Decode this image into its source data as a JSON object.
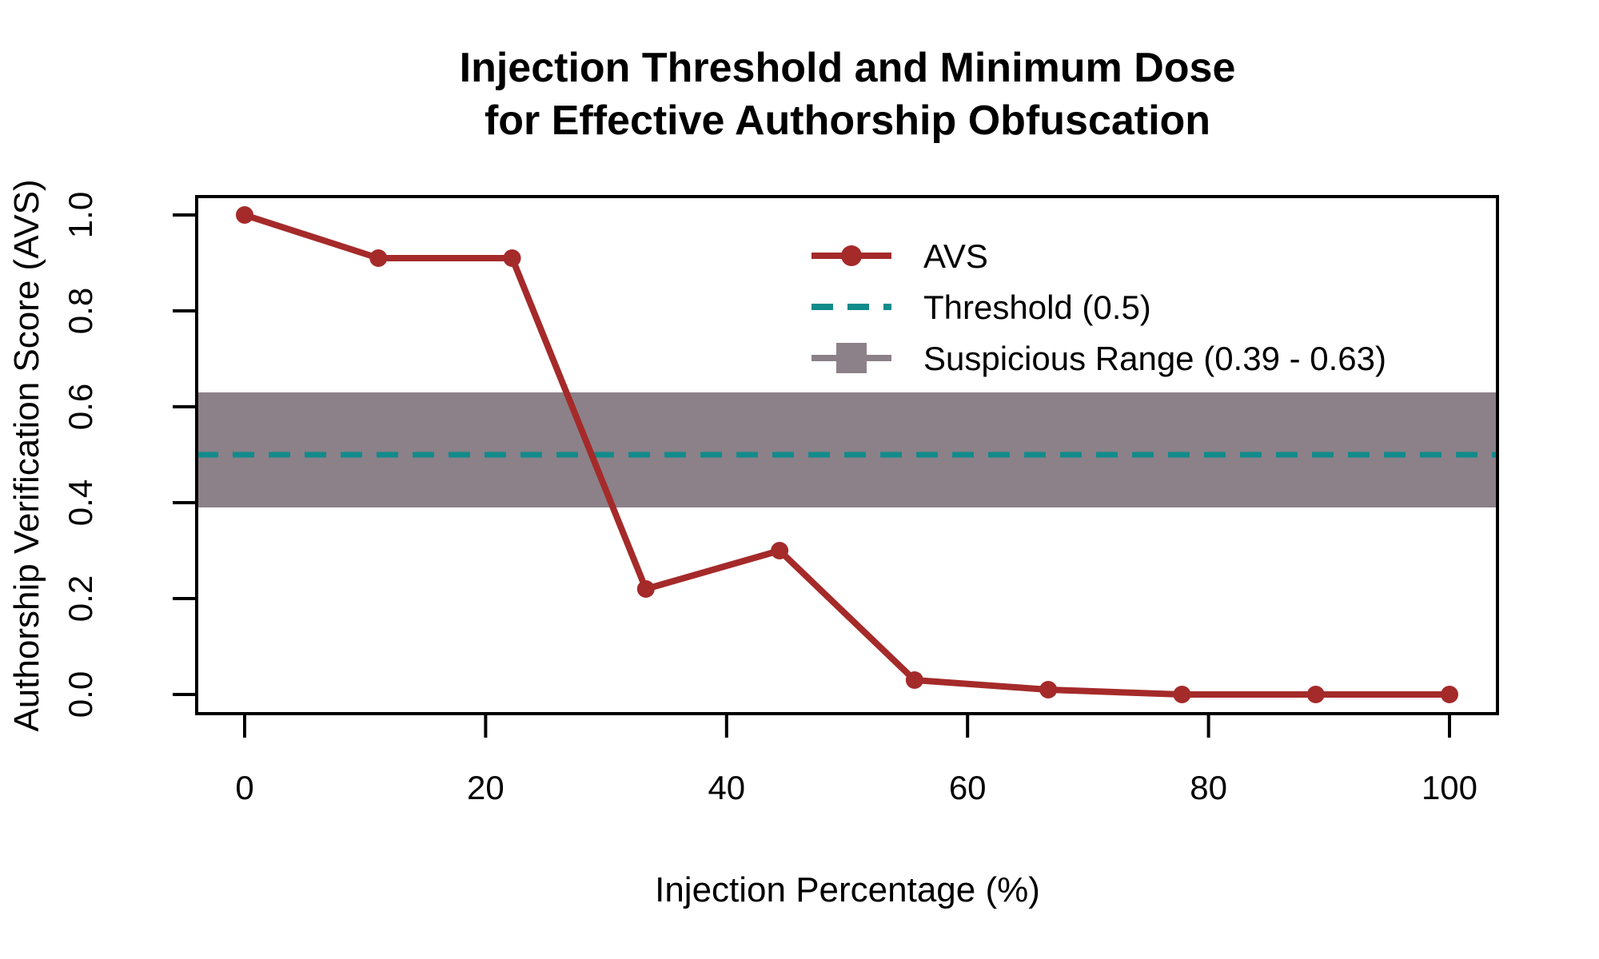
{
  "chart_data": {
    "type": "line",
    "title_line1": "Injection Threshold and Minimum Dose",
    "title_line2": "for Effective Authorship Obfuscation",
    "xlabel": "Injection Percentage (%)",
    "ylabel": "Authorship Verification Score (AVS)",
    "x": [
      0,
      11.1,
      22.2,
      33.3,
      44.4,
      55.6,
      66.7,
      77.8,
      88.9,
      100
    ],
    "series": [
      {
        "name": "AVS",
        "values": [
          1.0,
          0.91,
          0.91,
          0.22,
          0.3,
          0.03,
          0.01,
          0.0,
          0.0,
          0.0
        ]
      }
    ],
    "threshold_value": 0.5,
    "suspicious_range": [
      0.39,
      0.63
    ],
    "xlim": [
      0,
      100
    ],
    "ylim": [
      0,
      1
    ],
    "x_ticks": [
      "0",
      "20",
      "40",
      "60",
      "80",
      "100"
    ],
    "x_tick_values": [
      0,
      20,
      40,
      60,
      80,
      100
    ],
    "y_ticks": [
      "0.0",
      "0.2",
      "0.4",
      "0.6",
      "0.8",
      "1.0"
    ],
    "y_tick_values": [
      0,
      0.2,
      0.4,
      0.6,
      0.8,
      1.0
    ],
    "grid": false,
    "legend": {
      "position": "inside-top-right",
      "entries": [
        {
          "label": "AVS",
          "symbol": "line-point",
          "color": "#A52A2A"
        },
        {
          "label": "Threshold (0.5)",
          "symbol": "dashed-line",
          "color": "#128B8B"
        },
        {
          "label": "Suspicious Range (0.39 - 0.63)",
          "symbol": "band-square",
          "color": "#8C8189"
        }
      ]
    },
    "colors": {
      "avs_line": "#A52A2A",
      "threshold_line": "#128B8B",
      "suspicious_band": "#8C8189",
      "axis": "#000000",
      "background": "#FFFFFF"
    }
  }
}
